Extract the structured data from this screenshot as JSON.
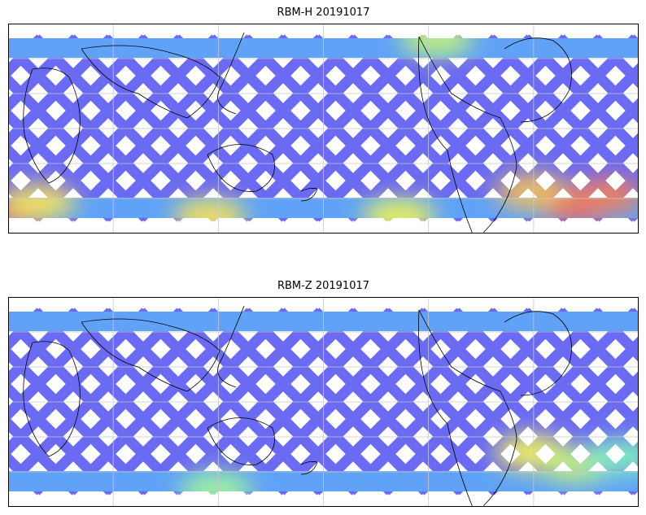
{
  "panels": [
    {
      "title": "RBM-H 20191017",
      "hot_spots": [
        {
          "lon": 0.02,
          "lat": 0.88,
          "color": "#f06060"
        },
        {
          "lon": 0.05,
          "lat": 0.85,
          "color": "#f0e060"
        },
        {
          "lon": 0.62,
          "lat": 0.92,
          "color": "#e8f060"
        },
        {
          "lon": 0.9,
          "lat": 0.86,
          "color": "#f06060"
        },
        {
          "lon": 0.95,
          "lat": 0.82,
          "color": "#f08060"
        },
        {
          "lon": 0.83,
          "lat": 0.8,
          "color": "#f0c060"
        },
        {
          "lon": 0.68,
          "lat": 0.07,
          "color": "#c0f080"
        },
        {
          "lon": 0.32,
          "lat": 0.92,
          "color": "#f0e060"
        }
      ]
    },
    {
      "title": "RBM-Z 20191017",
      "hot_spots": [
        {
          "lon": 0.83,
          "lat": 0.74,
          "color": "#f0f060"
        },
        {
          "lon": 0.9,
          "lat": 0.8,
          "color": "#c0f080"
        },
        {
          "lon": 0.97,
          "lat": 0.76,
          "color": "#80f0c0"
        },
        {
          "lon": 0.33,
          "lat": 0.92,
          "color": "#a0f0a0"
        }
      ]
    }
  ],
  "colors": {
    "track": "#6a6af2",
    "band": "#5ea8f8",
    "grid": "#c8c8c8"
  }
}
